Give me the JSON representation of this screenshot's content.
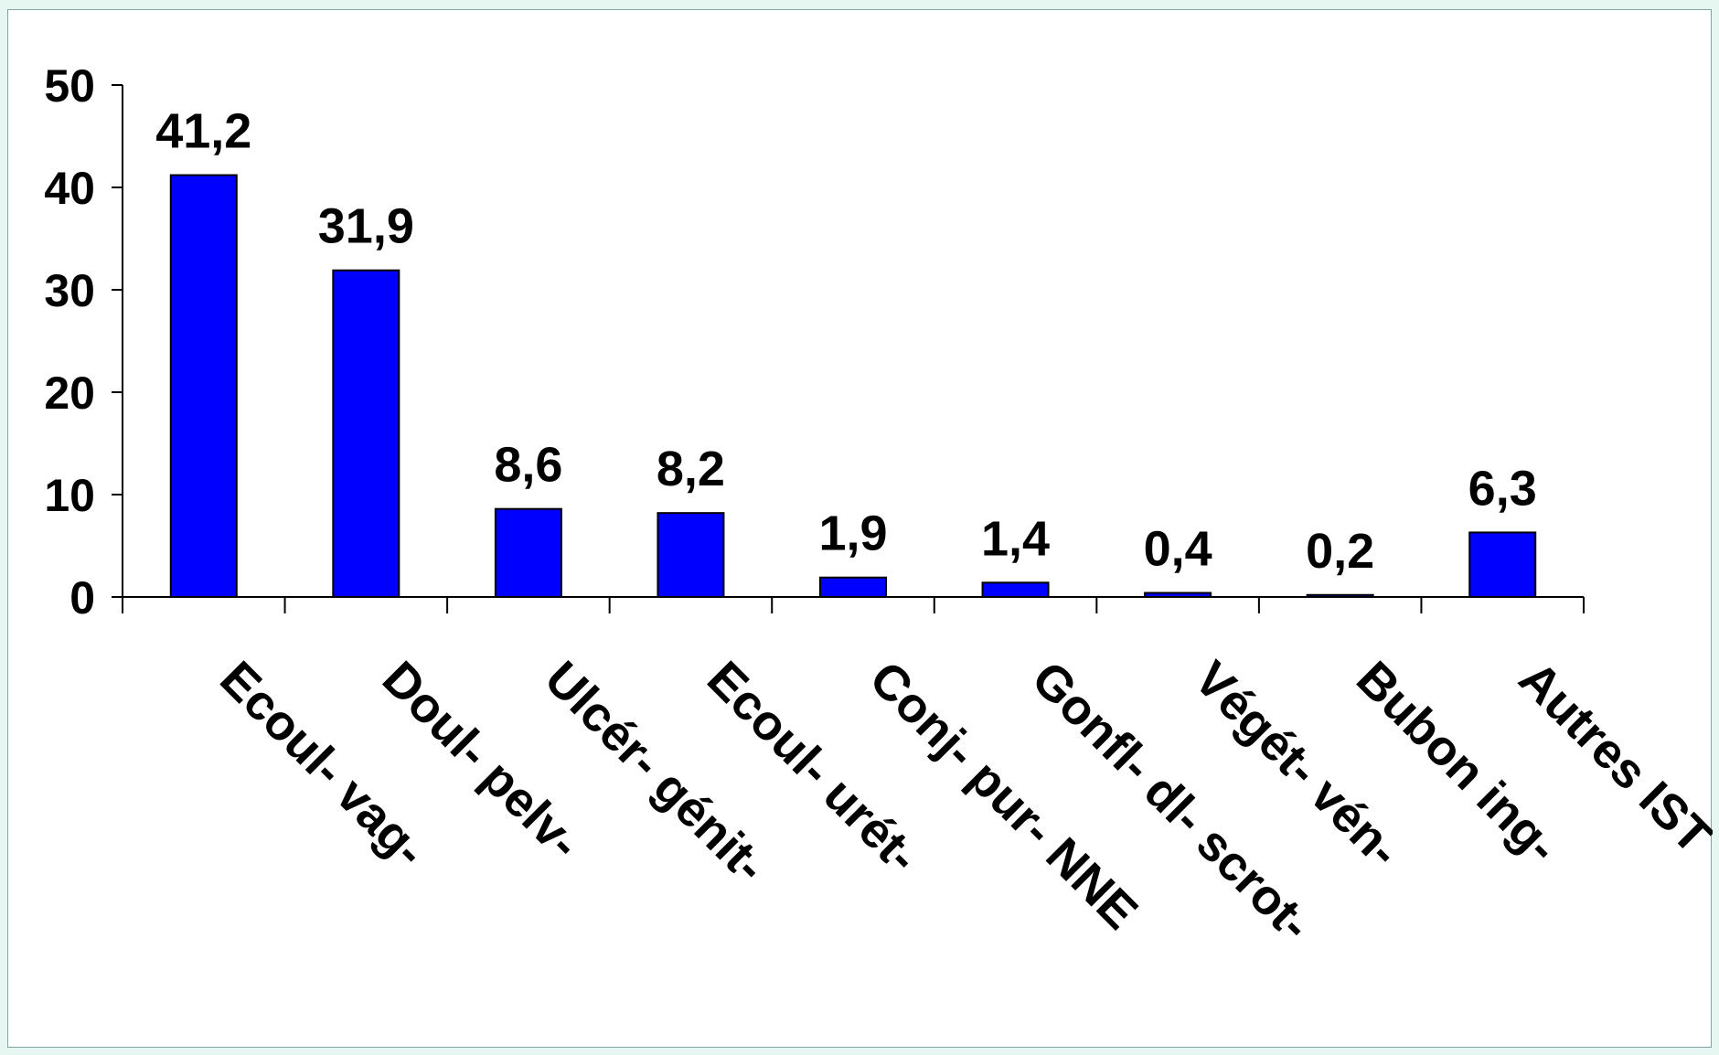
{
  "chart_data": {
    "type": "bar",
    "title": "",
    "xlabel": "",
    "ylabel": "",
    "ylim": [
      0,
      50
    ],
    "yticks": [
      "0",
      "10",
      "20",
      "30",
      "40",
      "50"
    ],
    "categories": [
      "Ecoul- vag-",
      "Doul- pelv-",
      "Ulcér- génit-",
      "Ecoul-  urét-",
      "Conj- pur- NNE",
      "Gonfl- dl- scrot-",
      "Végét- vén-",
      "Bubon ing-",
      "Autres IST"
    ],
    "values": [
      41.2,
      31.9,
      8.6,
      8.2,
      1.9,
      1.4,
      0.4,
      0.2,
      6.3
    ],
    "data_labels": [
      "41,2",
      "31,9",
      "8,6",
      "8,2",
      "1,9",
      "1,4",
      "0,4",
      "0,2",
      "6,3"
    ],
    "bar_color": "#0000FF",
    "grid": false,
    "legend": "none"
  }
}
